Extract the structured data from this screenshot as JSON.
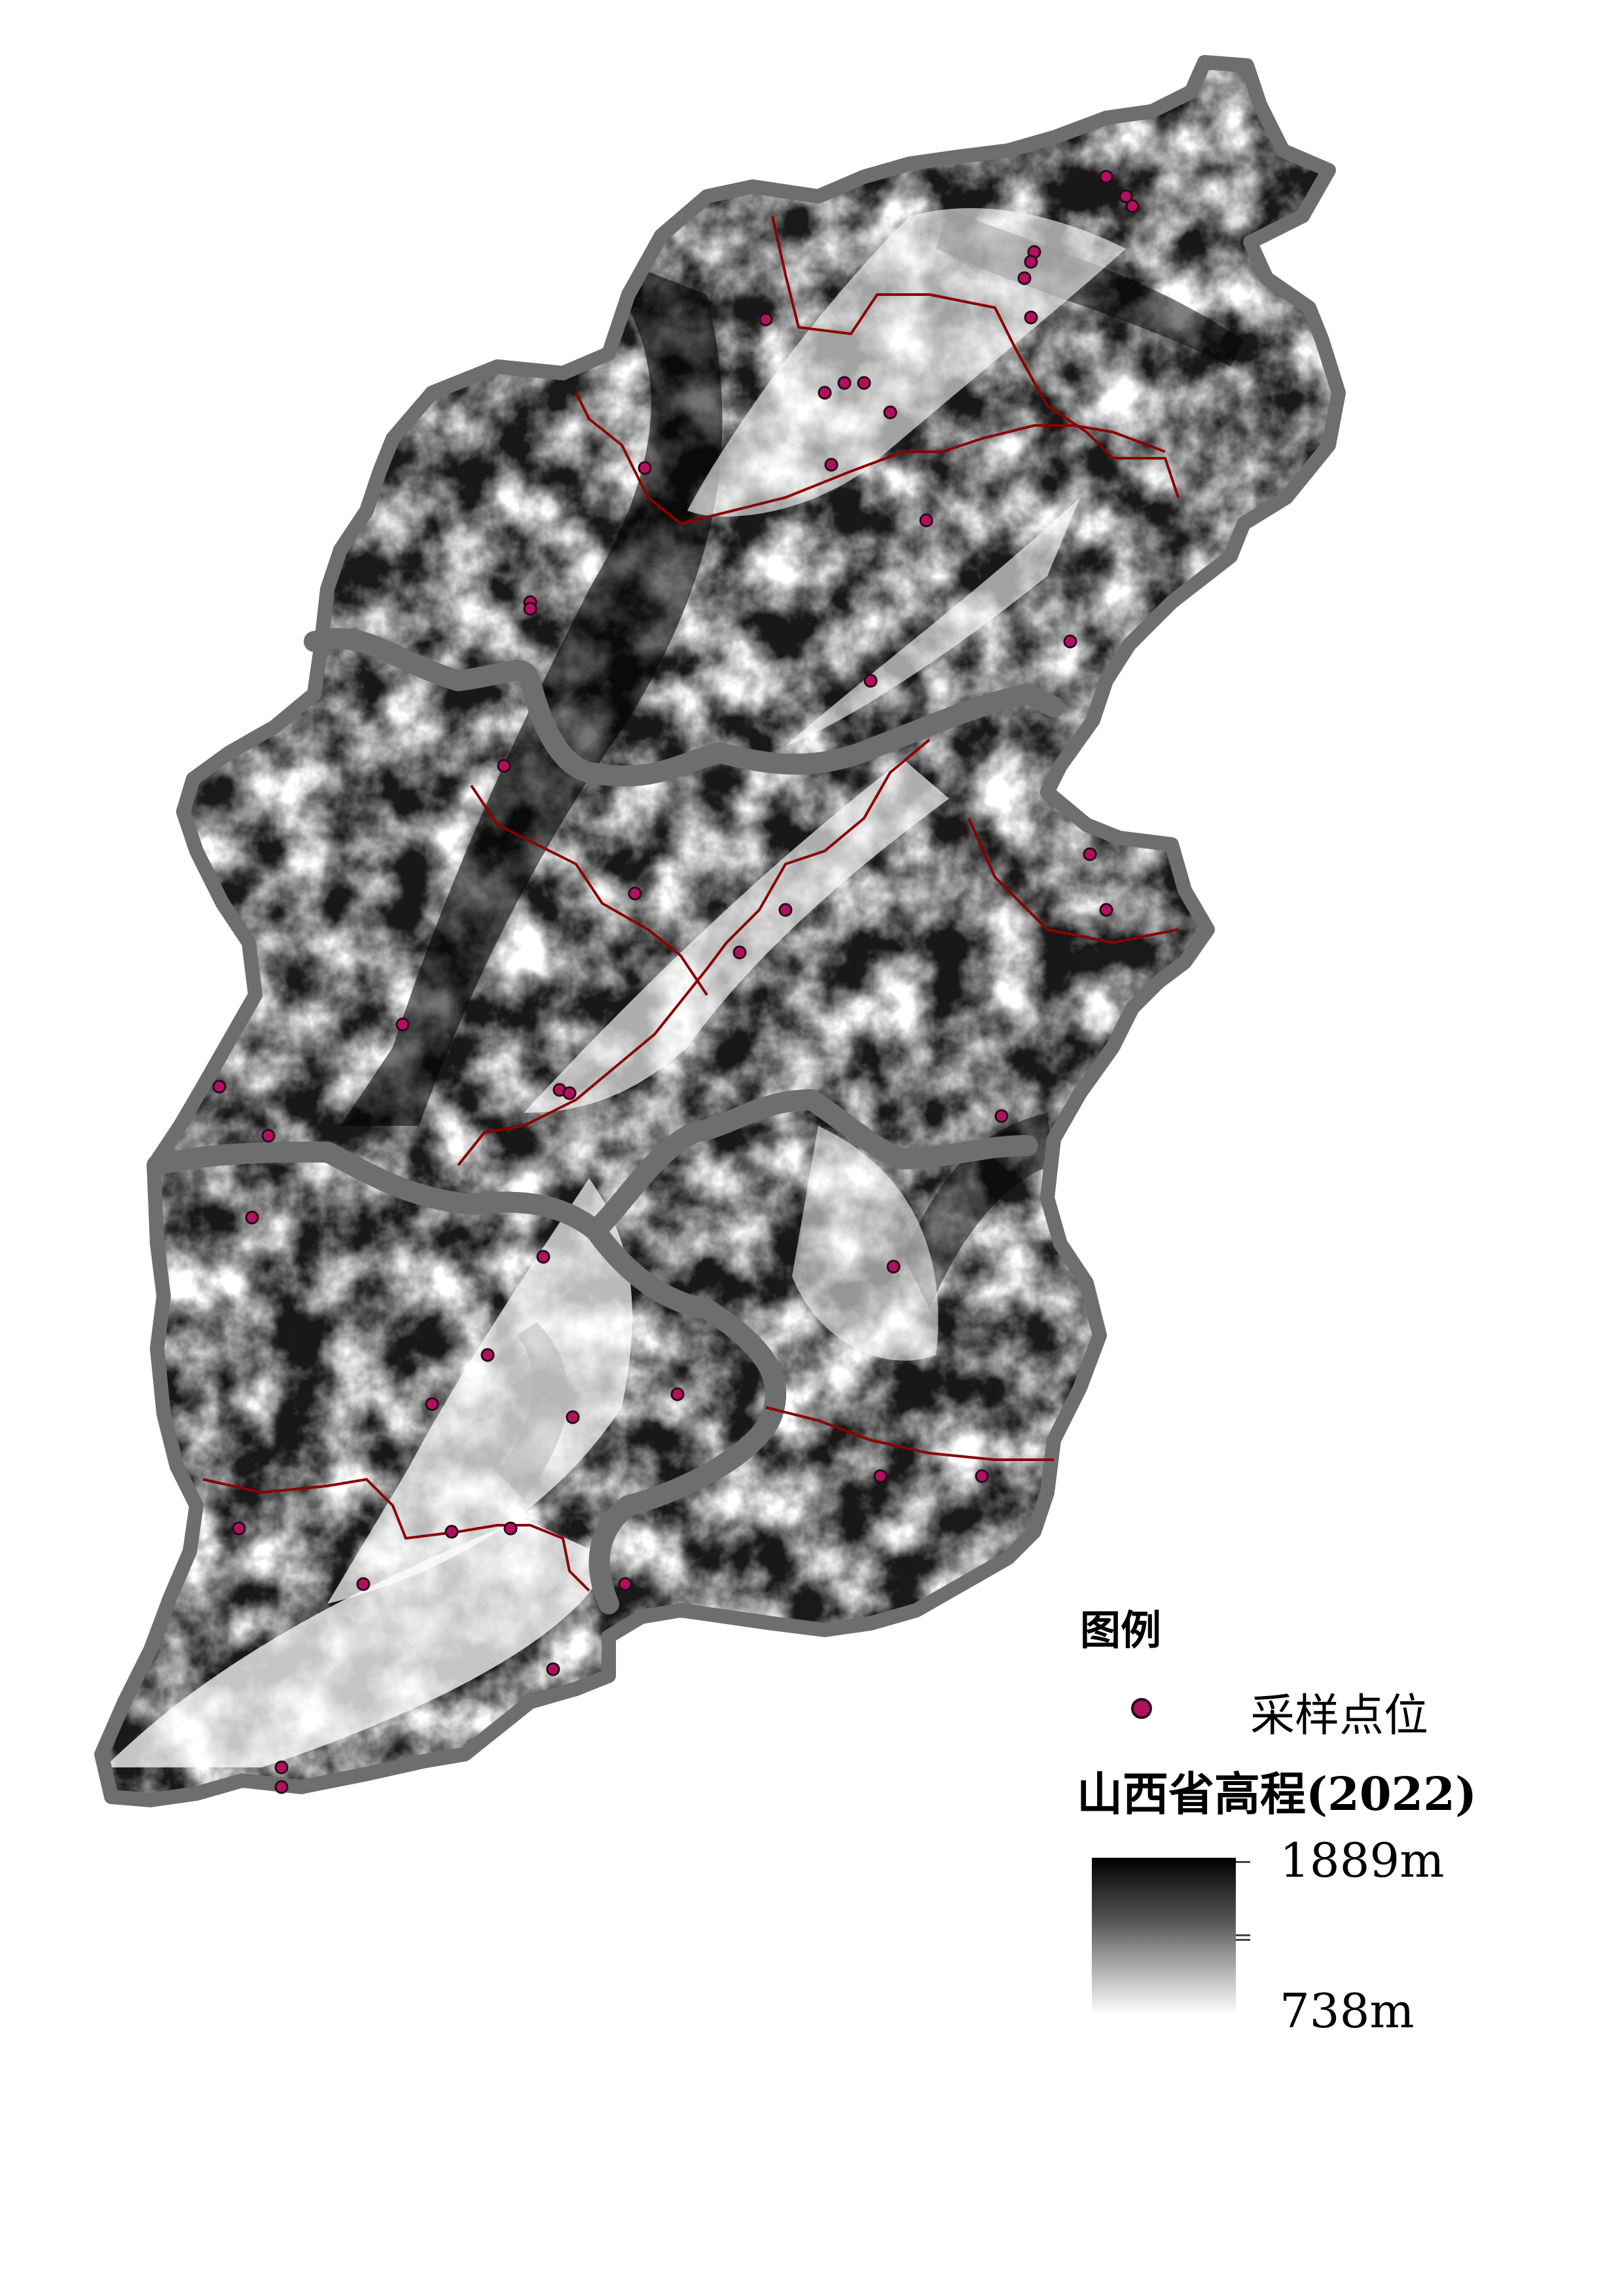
{
  "legend": {
    "title": "图例",
    "sample_label": "采样点位",
    "sample_color": "#b0125f",
    "elevation_title": "山西省高程(2022)",
    "elevation_max": "1889m",
    "elevation_min": "738m"
  },
  "colors": {
    "province_outline": "#6e6e6e",
    "city_boundary": "#8b0000",
    "elevation_high": "#000000",
    "elevation_low": "#ffffff"
  }
}
